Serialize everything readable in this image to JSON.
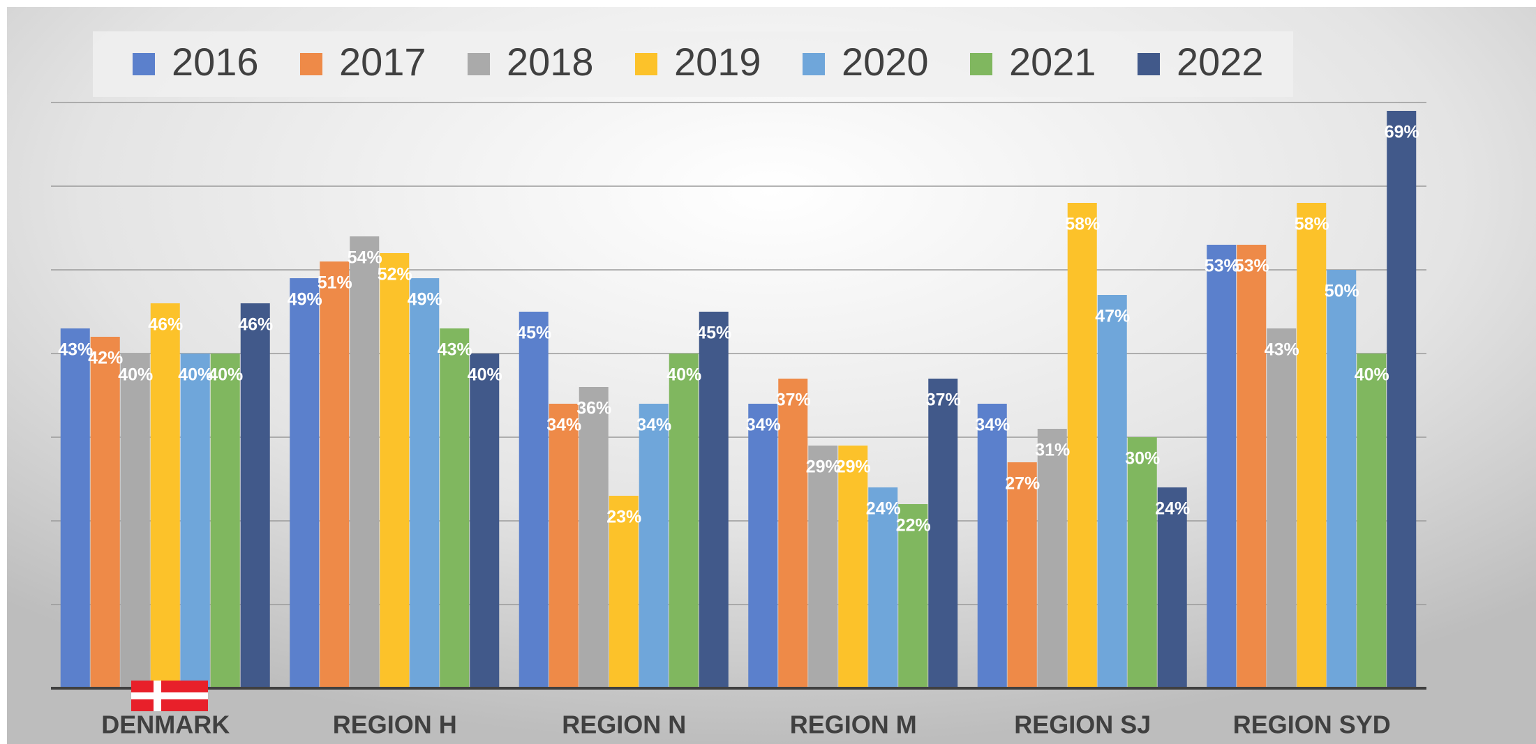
{
  "chart_data": {
    "type": "bar",
    "categories": [
      "DENMARK",
      "REGION H",
      "REGION N",
      "REGION M",
      "REGION SJ",
      "REGION SYD"
    ],
    "series": [
      {
        "name": "2016",
        "color": "#5b80cc",
        "values": [
          43,
          49,
          45,
          34,
          34,
          53
        ],
        "value_labels": [
          "43%",
          "49%",
          "45%",
          "34%",
          "34%",
          "53%"
        ]
      },
      {
        "name": "2017",
        "color": "#ee8a48",
        "values": [
          42,
          51,
          34,
          37,
          27,
          53
        ],
        "value_labels": [
          "42%",
          "51%",
          "34%",
          "37%",
          "27%",
          "53%"
        ]
      },
      {
        "name": "2018",
        "color": "#aaaaaa",
        "values": [
          40,
          54,
          36,
          29,
          31,
          43
        ],
        "value_labels": [
          "40%",
          "54%",
          "36%",
          "29%",
          "31%",
          "43%"
        ]
      },
      {
        "name": "2019",
        "color": "#fcc22a",
        "values": [
          46,
          52,
          23,
          29,
          58,
          58
        ],
        "value_labels": [
          "46%",
          "52%",
          "23%",
          "29%",
          "58%",
          "58%"
        ]
      },
      {
        "name": "2020",
        "color": "#6fa6da",
        "values": [
          40,
          49,
          34,
          24,
          47,
          50
        ],
        "value_labels": [
          "40%",
          "49%",
          "34%",
          "24%",
          "47%",
          "50%"
        ]
      },
      {
        "name": "2021",
        "color": "#80b75f",
        "values": [
          40,
          43,
          40,
          22,
          30,
          40
        ],
        "value_labels": [
          "40%",
          "43%",
          "40%",
          "22%",
          "30%",
          "40%"
        ]
      },
      {
        "name": "2022",
        "color": "#41598a",
        "values": [
          46,
          40,
          45,
          37,
          24,
          69
        ],
        "value_labels": [
          "46%",
          "40%",
          "45%",
          "37%",
          "24%",
          "69%"
        ]
      }
    ],
    "ylim": [
      0,
      70
    ],
    "yticks": [
      0,
      10,
      20,
      30,
      40,
      50,
      60,
      70
    ],
    "grid": true,
    "legend": "top"
  }
}
